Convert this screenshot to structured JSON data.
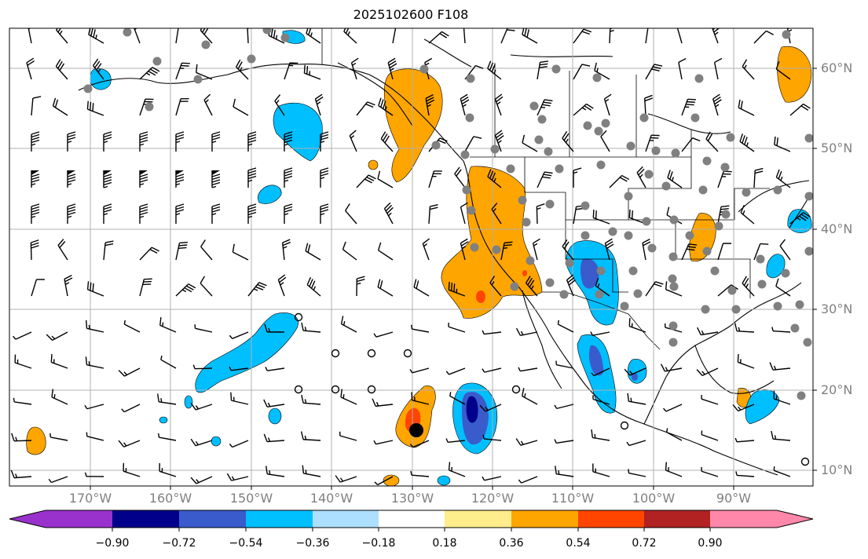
{
  "title": "2025102600 F108",
  "lat_labels": [
    "60°N",
    "50°N",
    "40°N",
    "30°N",
    "20°N",
    "10°N"
  ],
  "lon_labels": [
    "170°W",
    "160°W",
    "150°W",
    "140°W",
    "130°W",
    "120°W",
    "110°W",
    "100°W",
    "90°W"
  ],
  "colorbar": {
    "tick_labels": [
      "−0.90",
      "−0.72",
      "−0.54",
      "−0.36",
      "−0.18",
      "0.18",
      "0.36",
      "0.54",
      "0.72",
      "0.90"
    ],
    "colors": [
      "#9932CC",
      "#00008B",
      "#3A5BCC",
      "#00BFFF",
      "#ADDFFF",
      "#FFFFFF",
      "#FFEC8B",
      "#FFA500",
      "#FF4500",
      "#B22222",
      "#FF88AA"
    ]
  },
  "colors": {
    "positive_anomaly": "#FFA500",
    "strong_positive": "#FF4500",
    "negative_anomaly": "#00BFFF",
    "strong_negative": "#3A5BCC",
    "extreme_negative": "#00008B",
    "grid": "#B0B0B0",
    "station_dots": "#808080",
    "axis_labels": "#808080"
  }
}
